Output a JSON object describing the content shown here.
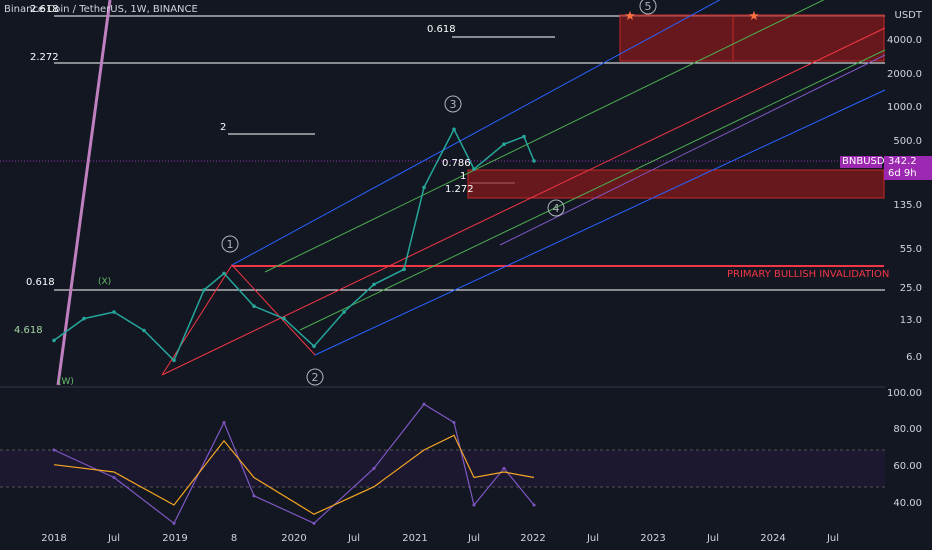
{
  "symbol_title": "Binance Coin / TetherUS, 1W, BINANCE",
  "currency": "USDT",
  "colors": {
    "bg": "#131722",
    "grid": "#2a2e39",
    "candle": "#26a69a",
    "candle_down": "#ef5350",
    "box": "#8b1a1a",
    "fib_line": "#ffffff",
    "channel_blue": "#2962ff",
    "channel_green": "#4caf50",
    "channel_red": "#f23645",
    "channel_purple": "#7e57c2",
    "rsi_line": "#7e57c2",
    "rsi_ma": "#f5a623",
    "invalidation": "#f23645",
    "tag_bg": "#9c27b0",
    "wave_label": "#b0b3bb"
  },
  "price_axis": [
    "USDT",
    "4000.0",
    "2000.0",
    "1000.0",
    "500.0",
    "135.0",
    "55.0",
    "25.0",
    "13.0",
    "6.0"
  ],
  "rsi_axis": [
    "100.00",
    "80.00",
    "60.00",
    "40.00"
  ],
  "time_axis": [
    "2018",
    "Jul",
    "2019",
    "8",
    "2020",
    "Jul",
    "2021",
    "Jul",
    "2022",
    "Jul",
    "2023",
    "Jul",
    "2024",
    "Jul"
  ],
  "current_price": {
    "symbol": "BNBUSDT",
    "value": "342.2",
    "countdown": "6d 9h"
  },
  "fib_labels": {
    "f2618": "2.618",
    "f2272": "2.272",
    "f0618_top": "0.618",
    "f2": "2",
    "f0618_left": "0.618",
    "f4618": "4.618",
    "f078": "0.786",
    "f1": "1",
    "f1272": "1.272"
  },
  "wave_labels": {
    "w1": "1",
    "w2": "2",
    "w3": "3",
    "w4": "4",
    "w5": "5",
    "wx": "(X)",
    "ww": "(W)"
  },
  "annotation": "PRIMARY BULLISH INVALIDATION",
  "chart_data": {
    "type": "line",
    "title": "Binance Coin / TetherUS, 1W, BINANCE",
    "y_scale": "log",
    "ylim": [
      3,
      8000
    ],
    "x": [
      "2018-01",
      "2018-04",
      "2018-07",
      "2018-10",
      "2019-01",
      "2019-04",
      "2019-06",
      "2019-09",
      "2019-12",
      "2020-03",
      "2020-06",
      "2020-09",
      "2020-12",
      "2021-02",
      "2021-05",
      "2021-07",
      "2021-10",
      "2021-12",
      "2022-01"
    ],
    "series": [
      {
        "values": [
          9,
          14,
          16,
          11,
          6,
          25,
          35,
          18,
          14,
          8,
          16,
          28,
          38,
          200,
          650,
          290,
          480,
          560,
          342
        ]
      }
    ],
    "rsi": {
      "ylim": [
        30,
        100
      ],
      "x": [
        "2018-01",
        "2018-07",
        "2019-01",
        "2019-06",
        "2019-09",
        "2020-03",
        "2020-09",
        "2021-02",
        "2021-05",
        "2021-07",
        "2021-10",
        "2022-01"
      ],
      "rsi": [
        70,
        55,
        30,
        85,
        45,
        30,
        60,
        95,
        85,
        40,
        60,
        40
      ],
      "ma": [
        62,
        58,
        40,
        75,
        55,
        35,
        50,
        70,
        78,
        55,
        58,
        55
      ]
    }
  }
}
